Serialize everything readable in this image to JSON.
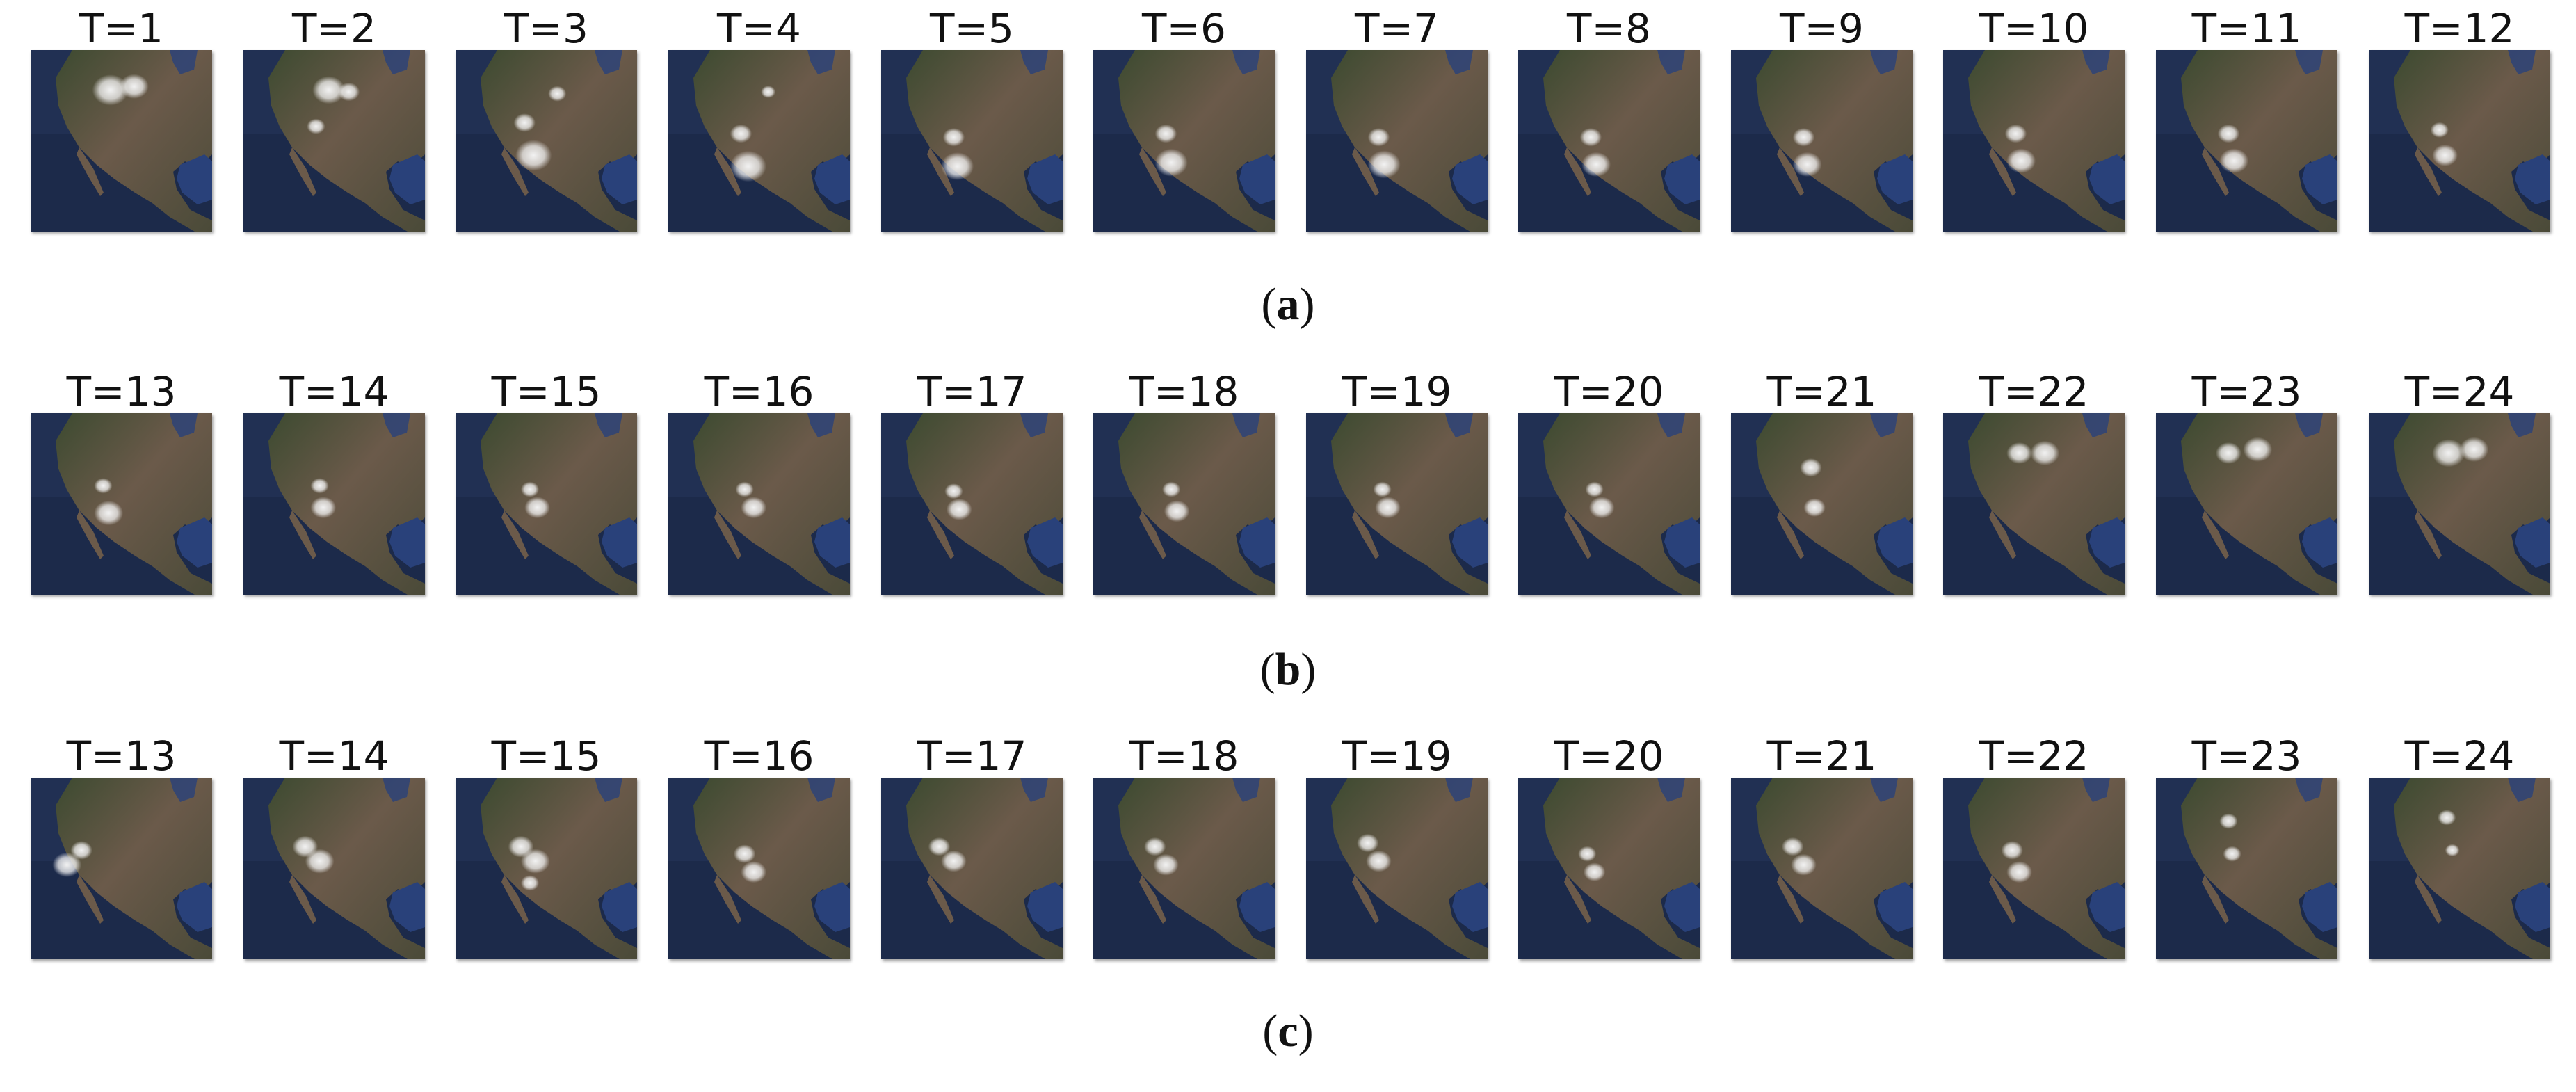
{
  "panels": [
    {
      "caption_open": "(",
      "caption_letter": "a",
      "caption_close": ")",
      "frames": [
        {
          "label": "T=1",
          "clouds": [
            [
              0.44,
              0.22,
              0.1
            ],
            [
              0.57,
              0.2,
              0.08
            ]
          ]
        },
        {
          "label": "T=2",
          "clouds": [
            [
              0.47,
              0.22,
              0.09
            ],
            [
              0.58,
              0.23,
              0.06
            ],
            [
              0.4,
              0.42,
              0.05
            ]
          ]
        },
        {
          "label": "T=3",
          "clouds": [
            [
              0.38,
              0.4,
              0.06
            ],
            [
              0.43,
              0.58,
              0.1
            ],
            [
              0.56,
              0.24,
              0.05
            ]
          ]
        },
        {
          "label": "T=4",
          "clouds": [
            [
              0.4,
              0.46,
              0.06
            ],
            [
              0.44,
              0.64,
              0.1
            ],
            [
              0.55,
              0.23,
              0.04
            ]
          ]
        },
        {
          "label": "T=5",
          "clouds": [
            [
              0.4,
              0.48,
              0.06
            ],
            [
              0.42,
              0.64,
              0.09
            ]
          ]
        },
        {
          "label": "T=6",
          "clouds": [
            [
              0.4,
              0.46,
              0.06
            ],
            [
              0.43,
              0.62,
              0.09
            ]
          ]
        },
        {
          "label": "T=7",
          "clouds": [
            [
              0.4,
              0.48,
              0.06
            ],
            [
              0.43,
              0.63,
              0.09
            ]
          ]
        },
        {
          "label": "T=8",
          "clouds": [
            [
              0.4,
              0.48,
              0.06
            ],
            [
              0.43,
              0.63,
              0.08
            ]
          ]
        },
        {
          "label": "T=9",
          "clouds": [
            [
              0.4,
              0.48,
              0.06
            ],
            [
              0.42,
              0.63,
              0.08
            ]
          ]
        },
        {
          "label": "T=10",
          "clouds": [
            [
              0.4,
              0.46,
              0.06
            ],
            [
              0.43,
              0.61,
              0.08
            ]
          ]
        },
        {
          "label": "T=11",
          "clouds": [
            [
              0.4,
              0.46,
              0.06
            ],
            [
              0.43,
              0.61,
              0.08
            ]
          ]
        },
        {
          "label": "T=12",
          "clouds": [
            [
              0.39,
              0.44,
              0.05
            ],
            [
              0.42,
              0.58,
              0.07
            ]
          ]
        }
      ]
    },
    {
      "caption_open": "(",
      "caption_letter": "b",
      "caption_close": ")",
      "frames": [
        {
          "label": "T=13",
          "clouds": [
            [
              0.4,
              0.4,
              0.05
            ],
            [
              0.43,
              0.55,
              0.08
            ]
          ]
        },
        {
          "label": "T=14",
          "clouds": [
            [
              0.42,
              0.4,
              0.05
            ],
            [
              0.44,
              0.52,
              0.07
            ]
          ]
        },
        {
          "label": "T=15",
          "clouds": [
            [
              0.41,
              0.42,
              0.05
            ],
            [
              0.45,
              0.52,
              0.07
            ]
          ]
        },
        {
          "label": "T=16",
          "clouds": [
            [
              0.42,
              0.42,
              0.05
            ],
            [
              0.47,
              0.52,
              0.07
            ]
          ]
        },
        {
          "label": "T=17",
          "clouds": [
            [
              0.4,
              0.43,
              0.05
            ],
            [
              0.43,
              0.53,
              0.07
            ]
          ]
        },
        {
          "label": "T=18",
          "clouds": [
            [
              0.43,
              0.42,
              0.05
            ],
            [
              0.46,
              0.54,
              0.07
            ]
          ]
        },
        {
          "label": "T=19",
          "clouds": [
            [
              0.42,
              0.42,
              0.05
            ],
            [
              0.45,
              0.52,
              0.07
            ]
          ]
        },
        {
          "label": "T=20",
          "clouds": [
            [
              0.42,
              0.42,
              0.05
            ],
            [
              0.46,
              0.52,
              0.07
            ]
          ]
        },
        {
          "label": "T=21",
          "clouds": [
            [
              0.44,
              0.3,
              0.06
            ],
            [
              0.46,
              0.52,
              0.06
            ]
          ]
        },
        {
          "label": "T=22",
          "clouds": [
            [
              0.42,
              0.22,
              0.07
            ],
            [
              0.56,
              0.22,
              0.08
            ]
          ]
        },
        {
          "label": "T=23",
          "clouds": [
            [
              0.4,
              0.22,
              0.07
            ],
            [
              0.56,
              0.2,
              0.08
            ]
          ]
        },
        {
          "label": "T=24",
          "clouds": [
            [
              0.44,
              0.22,
              0.09
            ],
            [
              0.58,
              0.2,
              0.08
            ]
          ]
        }
      ]
    },
    {
      "caption_open": "(",
      "caption_letter": "c",
      "caption_close": ")",
      "frames": [
        {
          "label": "T=13",
          "clouds": [
            [
              0.2,
              0.48,
              0.08
            ],
            [
              0.28,
              0.4,
              0.06
            ]
          ]
        },
        {
          "label": "T=14",
          "clouds": [
            [
              0.34,
              0.38,
              0.07
            ],
            [
              0.42,
              0.46,
              0.08
            ]
          ]
        },
        {
          "label": "T=15",
          "clouds": [
            [
              0.36,
              0.38,
              0.07
            ],
            [
              0.44,
              0.46,
              0.08
            ],
            [
              0.41,
              0.58,
              0.05
            ]
          ]
        },
        {
          "label": "T=16",
          "clouds": [
            [
              0.42,
              0.42,
              0.06
            ],
            [
              0.47,
              0.52,
              0.07
            ]
          ]
        },
        {
          "label": "T=17",
          "clouds": [
            [
              0.32,
              0.38,
              0.06
            ],
            [
              0.4,
              0.46,
              0.07
            ]
          ]
        },
        {
          "label": "T=18",
          "clouds": [
            [
              0.34,
              0.38,
              0.06
            ],
            [
              0.4,
              0.48,
              0.07
            ]
          ]
        },
        {
          "label": "T=19",
          "clouds": [
            [
              0.34,
              0.36,
              0.06
            ],
            [
              0.4,
              0.46,
              0.07
            ]
          ]
        },
        {
          "label": "T=20",
          "clouds": [
            [
              0.38,
              0.42,
              0.05
            ],
            [
              0.42,
              0.52,
              0.06
            ]
          ]
        },
        {
          "label": "T=21",
          "clouds": [
            [
              0.34,
              0.38,
              0.06
            ],
            [
              0.4,
              0.48,
              0.07
            ]
          ]
        },
        {
          "label": "T=22",
          "clouds": [
            [
              0.38,
              0.4,
              0.06
            ],
            [
              0.42,
              0.52,
              0.07
            ]
          ]
        },
        {
          "label": "T=23",
          "clouds": [
            [
              0.4,
              0.24,
              0.05
            ],
            [
              0.42,
              0.42,
              0.05
            ]
          ]
        },
        {
          "label": "T=24",
          "clouds": [
            [
              0.43,
              0.22,
              0.05
            ],
            [
              0.46,
              0.4,
              0.04
            ]
          ]
        }
      ]
    }
  ],
  "colors": {
    "ocean": "#1c2a4a",
    "ocean_light": "#2a3c63",
    "gulf": "#29417a",
    "land": "#4a4a38",
    "land_desert": "#6b5a4a",
    "land_green": "#3c4a30",
    "cloud": "#f2f2f2"
  }
}
